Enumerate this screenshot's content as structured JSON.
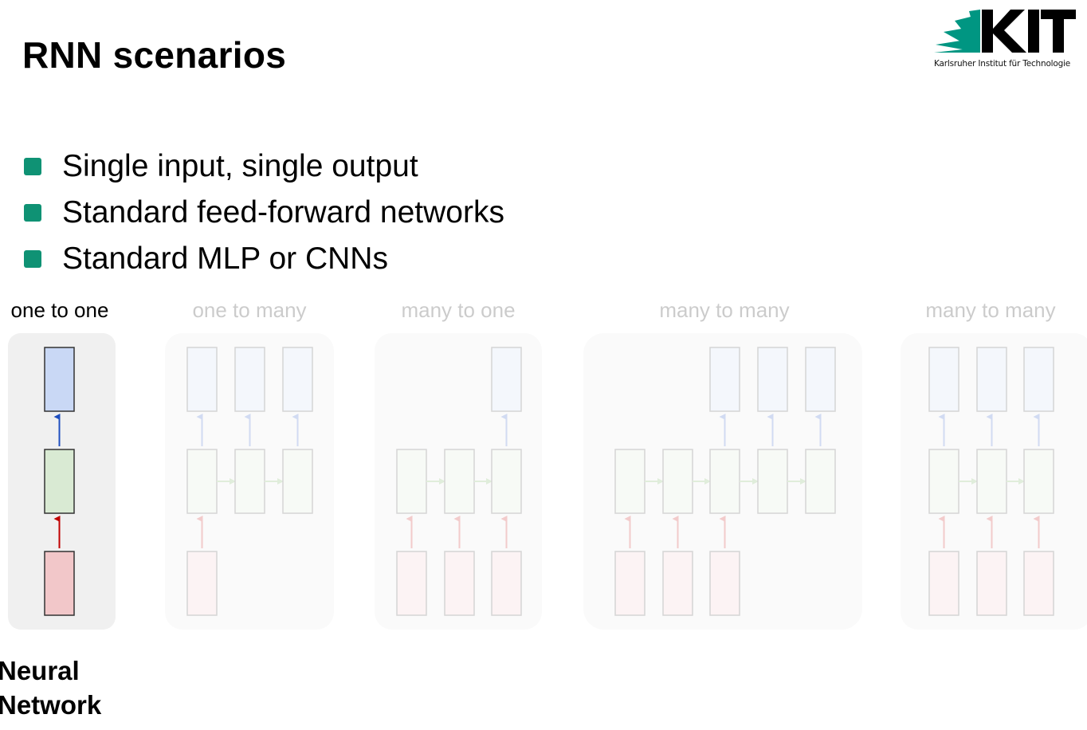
{
  "slide": {
    "title": "RNN scenarios"
  },
  "logo": {
    "name": "KIT",
    "caption": "Karlsruher Institut für Technologie"
  },
  "bullets": [
    "Single input, single output",
    "Standard feed-forward networks",
    "Standard MLP or CNNs"
  ],
  "scenarios": [
    {
      "label": "one to one",
      "highlighted": true
    },
    {
      "label": "one to many",
      "highlighted": false
    },
    {
      "label": "many to one",
      "highlighted": false
    },
    {
      "label": "many to many",
      "highlighted": false
    },
    {
      "label": "many to many",
      "highlighted": false
    }
  ],
  "caption": {
    "line1": "Neural",
    "line2": "Network"
  },
  "colors": {
    "bullet": "#0f9274",
    "kit_green": "#009682",
    "input_fill": "#f2c7c9",
    "hidden_fill": "#d9ead3",
    "output_fill": "#c9d8f5",
    "input_arrow": "#c00000",
    "output_arrow": "#1f4fbf"
  }
}
